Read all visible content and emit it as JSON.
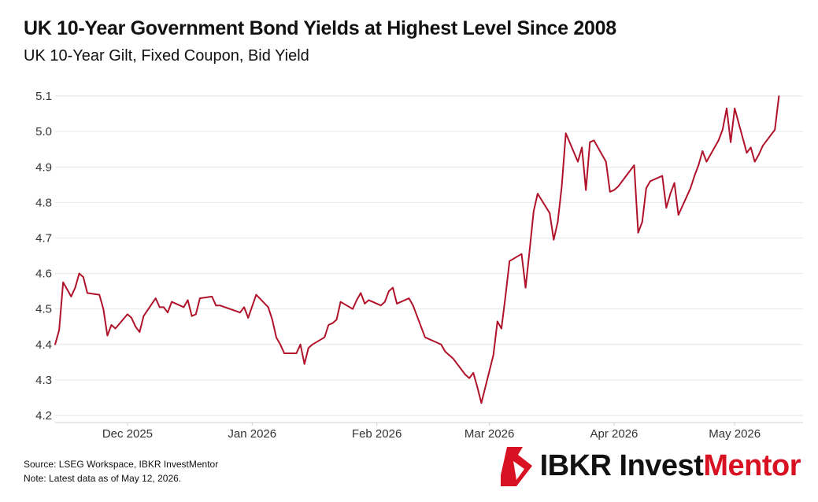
{
  "header": {
    "title": "UK 10-Year Government Bond Yields at Highest Level Since 2008",
    "subtitle": "UK 10-Year Gilt, Fixed Coupon, Bid Yield"
  },
  "footer": {
    "source": "Source: LSEG Workspace, IBKR InvestMentor",
    "note": "Note: Latest data as of May 12, 2026."
  },
  "brand": {
    "name_part1": "IBKR Invest",
    "name_part2": "Mentor",
    "icon": "ibkr-logo-icon",
    "accent_color": "#d81222"
  },
  "chart_data": {
    "type": "line",
    "title": "UK 10-Year Government Bond Yields at Highest Level Since 2008",
    "subtitle": "UK 10-Year Gilt, Fixed Coupon, Bid Yield",
    "xlabel": "",
    "ylabel": "",
    "xlim": [
      "2025-11-13",
      "2026-05-18"
    ],
    "ylim": [
      4.18,
      5.14
    ],
    "yticks": [
      4.2,
      4.3,
      4.4,
      4.5,
      4.6,
      4.7,
      4.8,
      4.9,
      5.0,
      5.1
    ],
    "xticks": [
      {
        "date": "2025-12-01",
        "label": "Dec 2025"
      },
      {
        "date": "2026-01-01",
        "label": "Jan 2026"
      },
      {
        "date": "2026-02-01",
        "label": "Feb 2026"
      },
      {
        "date": "2026-03-01",
        "label": "Mar 2026"
      },
      {
        "date": "2026-04-01",
        "label": "Apr 2026"
      },
      {
        "date": "2026-05-01",
        "label": "May 2026"
      }
    ],
    "grid": "horizontal",
    "line_color": "#b0122a",
    "series": [
      {
        "x": [
          "2025-11-13",
          "2025-11-14",
          "2025-11-15",
          "2025-11-17",
          "2025-11-18",
          "2025-11-19",
          "2025-11-20",
          "2025-11-21",
          "2025-11-24",
          "2025-11-25",
          "2025-11-26",
          "2025-11-27",
          "2025-11-28",
          "2025-12-01",
          "2025-12-02",
          "2025-12-03",
          "2025-12-04",
          "2025-12-05",
          "2025-12-08",
          "2025-12-09",
          "2025-12-10",
          "2025-12-11",
          "2025-12-12",
          "2025-12-15",
          "2025-12-16",
          "2025-12-17",
          "2025-12-18",
          "2025-12-19",
          "2025-12-22",
          "2025-12-23",
          "2025-12-24",
          "2025-12-29",
          "2025-12-30",
          "2025-12-31",
          "2026-01-02",
          "2026-01-05",
          "2026-01-06",
          "2026-01-07",
          "2026-01-08",
          "2026-01-09",
          "2026-01-12",
          "2026-01-13",
          "2026-01-14",
          "2026-01-15",
          "2026-01-16",
          "2026-01-19",
          "2026-01-20",
          "2026-01-21",
          "2026-01-22",
          "2026-01-23",
          "2026-01-26",
          "2026-01-27",
          "2026-01-28",
          "2026-01-29",
          "2026-01-30",
          "2026-02-02",
          "2026-02-03",
          "2026-02-04",
          "2026-02-05",
          "2026-02-06",
          "2026-02-09",
          "2026-02-10",
          "2026-02-11",
          "2026-02-12",
          "2026-02-13",
          "2026-02-16",
          "2026-02-17",
          "2026-02-18",
          "2026-02-19",
          "2026-02-20",
          "2026-02-23",
          "2026-02-24",
          "2026-02-25",
          "2026-02-26",
          "2026-02-27",
          "2026-03-02",
          "2026-03-03",
          "2026-03-04",
          "2026-03-05",
          "2026-03-06",
          "2026-03-09",
          "2026-03-10",
          "2026-03-11",
          "2026-03-12",
          "2026-03-13",
          "2026-03-16",
          "2026-03-17",
          "2026-03-18",
          "2026-03-19",
          "2026-03-20",
          "2026-03-23",
          "2026-03-24",
          "2026-03-25",
          "2026-03-26",
          "2026-03-27",
          "2026-03-30",
          "2026-03-31",
          "2026-04-01",
          "2026-04-02",
          "2026-04-06",
          "2026-04-07",
          "2026-04-08",
          "2026-04-09",
          "2026-04-10",
          "2026-04-13",
          "2026-04-14",
          "2026-04-15",
          "2026-04-16",
          "2026-04-17",
          "2026-04-20",
          "2026-04-21",
          "2026-04-22",
          "2026-04-23",
          "2026-04-24",
          "2026-04-27",
          "2026-04-28",
          "2026-04-29",
          "2026-04-30",
          "2026-05-01",
          "2026-05-04",
          "2026-05-05",
          "2026-05-06",
          "2026-05-07",
          "2026-05-08",
          "2026-05-11",
          "2026-05-12"
        ],
        "values": [
          4.4,
          4.44,
          4.575,
          4.535,
          4.56,
          4.6,
          4.59,
          4.545,
          4.54,
          4.5,
          4.425,
          4.455,
          4.445,
          4.485,
          4.475,
          4.45,
          4.435,
          4.48,
          4.53,
          4.505,
          4.505,
          4.49,
          4.52,
          4.505,
          4.525,
          4.48,
          4.485,
          4.53,
          4.535,
          4.51,
          4.51,
          4.49,
          4.505,
          4.475,
          4.54,
          4.505,
          4.47,
          4.42,
          4.4,
          4.375,
          4.375,
          4.4,
          4.345,
          4.39,
          4.4,
          4.42,
          4.455,
          4.46,
          4.47,
          4.52,
          4.5,
          4.525,
          4.545,
          4.515,
          4.525,
          4.51,
          4.52,
          4.55,
          4.56,
          4.515,
          4.53,
          4.51,
          4.48,
          4.45,
          4.42,
          4.405,
          4.4,
          4.38,
          4.37,
          4.36,
          4.315,
          4.305,
          4.32,
          4.28,
          4.235,
          4.37,
          4.465,
          4.445,
          4.535,
          4.635,
          4.655,
          4.56,
          4.665,
          4.775,
          4.825,
          4.77,
          4.695,
          4.745,
          4.845,
          4.995,
          4.915,
          4.955,
          4.835,
          4.97,
          4.975,
          4.915,
          4.83,
          4.835,
          4.845,
          4.905,
          4.715,
          4.745,
          4.84,
          4.86,
          4.875,
          4.785,
          4.825,
          4.855,
          4.765,
          4.84,
          4.875,
          4.905,
          4.945,
          4.915,
          4.975,
          5.005,
          5.065,
          4.97,
          5.065,
          4.94,
          4.955,
          4.915,
          4.935,
          4.96,
          5.005,
          5.1
        ]
      }
    ]
  }
}
